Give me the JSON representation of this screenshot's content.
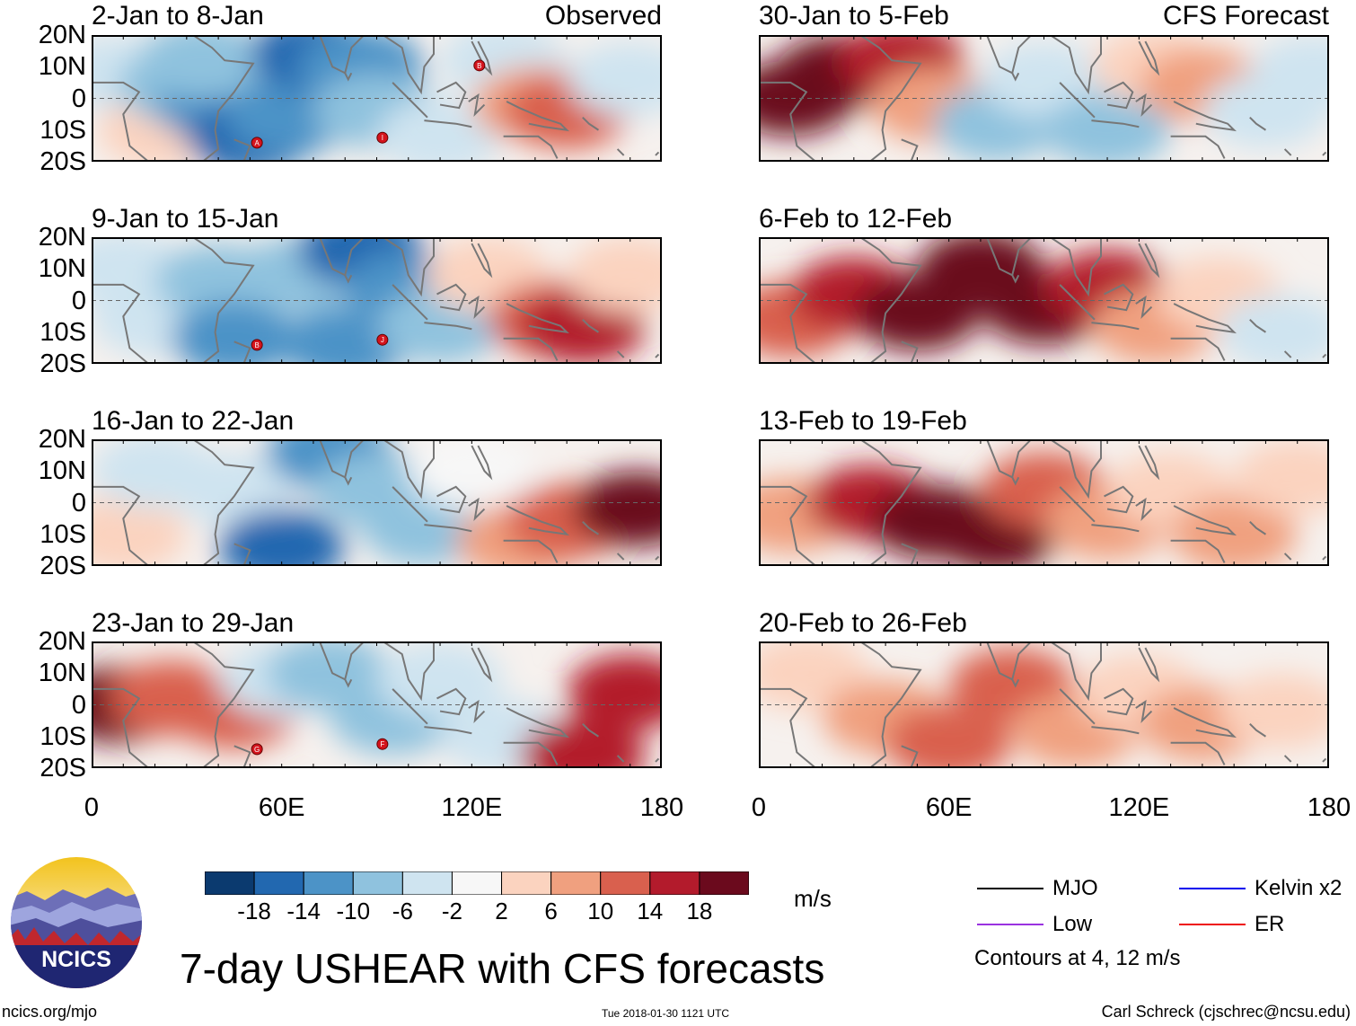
{
  "chart_data": {
    "type": "heatmap",
    "title": "7-day USHEAR with CFS forecasts",
    "variable": "USHEAR",
    "units": "m/s",
    "left_column_header": "Observed",
    "right_column_header": "CFS Forecast",
    "y_ticks": [
      "20N",
      "10N",
      "0",
      "10S",
      "20S"
    ],
    "x_ticks": [
      "0",
      "60E",
      "120E",
      "180"
    ],
    "xlim": [
      0,
      180
    ],
    "ylim": [
      -20,
      20
    ],
    "colorbar": {
      "ticks": [
        "-18",
        "-14",
        "-10",
        "-6",
        "-2",
        "2",
        "6",
        "10",
        "14",
        "18"
      ],
      "colors": [
        "#0b3a6f",
        "#2268b0",
        "#4c93c7",
        "#8fc2de",
        "#cfe4f0",
        "#f7f7f7",
        "#fbd3bf",
        "#f0a07f",
        "#d9604e",
        "#b31b2c",
        "#6b0a1d"
      ]
    },
    "contours": {
      "note": "Contours at 4, 12 m/s",
      "series": [
        {
          "name": "MJO",
          "color": "#000000"
        },
        {
          "name": "Kelvin x2",
          "color": "#0000ee"
        },
        {
          "name": "Low",
          "color": "#9a32e0"
        },
        {
          "name": "ER",
          "color": "#ee1111"
        }
      ]
    },
    "panels": [
      {
        "label": "2-Jan to 8-Jan",
        "source": "Observed",
        "storms": [
          "A",
          "I",
          "B"
        ],
        "field": [
          {
            "lon": 8,
            "lat": 8,
            "v": -4
          },
          {
            "lon": 22,
            "lat": -10,
            "v": 5
          },
          {
            "lon": 28,
            "lat": 4,
            "v": -8
          },
          {
            "lon": 40,
            "lat": -2,
            "v": -14
          },
          {
            "lon": 35,
            "lat": 12,
            "v": -10
          },
          {
            "lon": 50,
            "lat": -12,
            "v": -16
          },
          {
            "lon": 62,
            "lat": -6,
            "v": -12
          },
          {
            "lon": 70,
            "lat": 14,
            "v": -18
          },
          {
            "lon": 85,
            "lat": 10,
            "v": -12
          },
          {
            "lon": 90,
            "lat": -4,
            "v": -8
          },
          {
            "lon": 110,
            "lat": -12,
            "v": -4
          },
          {
            "lon": 130,
            "lat": 12,
            "v": -6
          },
          {
            "lon": 140,
            "lat": -2,
            "v": 8
          },
          {
            "lon": 150,
            "lat": -4,
            "v": 12
          },
          {
            "lon": 170,
            "lat": 6,
            "v": -4
          }
        ]
      },
      {
        "label": "9-Jan to 15-Jan",
        "source": "Observed",
        "storms": [
          "B",
          "J"
        ],
        "field": [
          {
            "lon": 10,
            "lat": 10,
            "v": -6
          },
          {
            "lon": 20,
            "lat": -6,
            "v": -4
          },
          {
            "lon": 40,
            "lat": 6,
            "v": -10
          },
          {
            "lon": 45,
            "lat": -12,
            "v": -12
          },
          {
            "lon": 65,
            "lat": 8,
            "v": -10
          },
          {
            "lon": 80,
            "lat": -14,
            "v": -12
          },
          {
            "lon": 85,
            "lat": 16,
            "v": -18
          },
          {
            "lon": 100,
            "lat": 4,
            "v": -14
          },
          {
            "lon": 110,
            "lat": -8,
            "v": -10
          },
          {
            "lon": 125,
            "lat": 8,
            "v": 4
          },
          {
            "lon": 145,
            "lat": -6,
            "v": 12
          },
          {
            "lon": 155,
            "lat": -8,
            "v": 16
          },
          {
            "lon": 170,
            "lat": 8,
            "v": 4
          }
        ]
      },
      {
        "label": "16-Jan to 22-Jan",
        "source": "Observed",
        "storms": [],
        "field": [
          {
            "lon": 10,
            "lat": -10,
            "v": 4
          },
          {
            "lon": 20,
            "lat": 10,
            "v": -4
          },
          {
            "lon": 45,
            "lat": 4,
            "v": -6
          },
          {
            "lon": 60,
            "lat": -14,
            "v": -16
          },
          {
            "lon": 75,
            "lat": 16,
            "v": -14
          },
          {
            "lon": 90,
            "lat": 4,
            "v": -10
          },
          {
            "lon": 105,
            "lat": -8,
            "v": -8
          },
          {
            "lon": 120,
            "lat": 10,
            "v": -2
          },
          {
            "lon": 135,
            "lat": -12,
            "v": 6
          },
          {
            "lon": 150,
            "lat": -6,
            "v": 10
          },
          {
            "lon": 172,
            "lat": -2,
            "v": 18
          }
        ]
      },
      {
        "label": "23-Jan to 29-Jan",
        "source": "Observed",
        "storms": [
          "G",
          "F"
        ],
        "field": [
          {
            "lon": 8,
            "lat": 0,
            "v": 18
          },
          {
            "lon": 25,
            "lat": 2,
            "v": 12
          },
          {
            "lon": 45,
            "lat": -2,
            "v": 10
          },
          {
            "lon": 60,
            "lat": 8,
            "v": -4
          },
          {
            "lon": 75,
            "lat": 10,
            "v": -10
          },
          {
            "lon": 95,
            "lat": -4,
            "v": -10
          },
          {
            "lon": 110,
            "lat": 8,
            "v": -6
          },
          {
            "lon": 130,
            "lat": -10,
            "v": -4
          },
          {
            "lon": 155,
            "lat": -16,
            "v": 14
          },
          {
            "lon": 170,
            "lat": 4,
            "v": 14
          }
        ]
      },
      {
        "label": "30-Jan to 5-Feb",
        "source": "CFS Forecast",
        "storms": [],
        "field": [
          {
            "lon": 10,
            "lat": 0,
            "v": 20
          },
          {
            "lon": 25,
            "lat": 8,
            "v": 18
          },
          {
            "lon": 45,
            "lat": 12,
            "v": 14
          },
          {
            "lon": 55,
            "lat": -2,
            "v": 6
          },
          {
            "lon": 75,
            "lat": -8,
            "v": -8
          },
          {
            "lon": 90,
            "lat": 6,
            "v": -4
          },
          {
            "lon": 110,
            "lat": -10,
            "v": -10
          },
          {
            "lon": 125,
            "lat": 10,
            "v": 4
          },
          {
            "lon": 140,
            "lat": 4,
            "v": 8
          },
          {
            "lon": 160,
            "lat": -4,
            "v": -6
          },
          {
            "lon": 175,
            "lat": 8,
            "v": -6
          }
        ]
      },
      {
        "label": "6-Feb to 12-Feb",
        "source": "CFS Forecast",
        "storms": [],
        "field": [
          {
            "lon": 10,
            "lat": -6,
            "v": 12
          },
          {
            "lon": 30,
            "lat": 2,
            "v": 16
          },
          {
            "lon": 50,
            "lat": -4,
            "v": 18
          },
          {
            "lon": 70,
            "lat": 10,
            "v": 20
          },
          {
            "lon": 90,
            "lat": -2,
            "v": 18
          },
          {
            "lon": 110,
            "lat": 4,
            "v": 14
          },
          {
            "lon": 125,
            "lat": -8,
            "v": 8
          },
          {
            "lon": 145,
            "lat": 2,
            "v": 2
          },
          {
            "lon": 165,
            "lat": -10,
            "v": -4
          }
        ]
      },
      {
        "label": "13-Feb to 19-Feb",
        "source": "CFS Forecast",
        "storms": [],
        "field": [
          {
            "lon": 10,
            "lat": -4,
            "v": 8
          },
          {
            "lon": 35,
            "lat": 0,
            "v": 14
          },
          {
            "lon": 55,
            "lat": -6,
            "v": 18
          },
          {
            "lon": 75,
            "lat": -10,
            "v": 20
          },
          {
            "lon": 90,
            "lat": 4,
            "v": 12
          },
          {
            "lon": 110,
            "lat": -6,
            "v": 8
          },
          {
            "lon": 130,
            "lat": 4,
            "v": 4
          },
          {
            "lon": 150,
            "lat": -10,
            "v": 6
          },
          {
            "lon": 170,
            "lat": 8,
            "v": 2
          }
        ]
      },
      {
        "label": "20-Feb to 26-Feb",
        "source": "CFS Forecast",
        "storms": [],
        "field": [
          {
            "lon": 15,
            "lat": 10,
            "v": 4
          },
          {
            "lon": 40,
            "lat": -4,
            "v": 8
          },
          {
            "lon": 60,
            "lat": -12,
            "v": 12
          },
          {
            "lon": 80,
            "lat": 6,
            "v": 10
          },
          {
            "lon": 100,
            "lat": -8,
            "v": 8
          },
          {
            "lon": 120,
            "lat": 4,
            "v": 4
          },
          {
            "lon": 140,
            "lat": -6,
            "v": 6
          },
          {
            "lon": 165,
            "lat": -2,
            "v": 2
          }
        ]
      }
    ]
  },
  "legend": {
    "units_label": "m/s",
    "contour_note": "Contours at 4, 12 m/s",
    "items": [
      {
        "label": "MJO",
        "color": "#000000"
      },
      {
        "label": "Kelvin x2",
        "color": "#0000ee"
      },
      {
        "label": "Low",
        "color": "#9a32e0"
      },
      {
        "label": "ER",
        "color": "#ee1111"
      }
    ]
  },
  "branding": {
    "logo_text": "NCICS",
    "site": "ncics.org/mjo",
    "timestamp": "Tue 2018-01-30 1121 UTC",
    "credit": "Carl Schreck (cjschrec@ncsu.edu)"
  }
}
